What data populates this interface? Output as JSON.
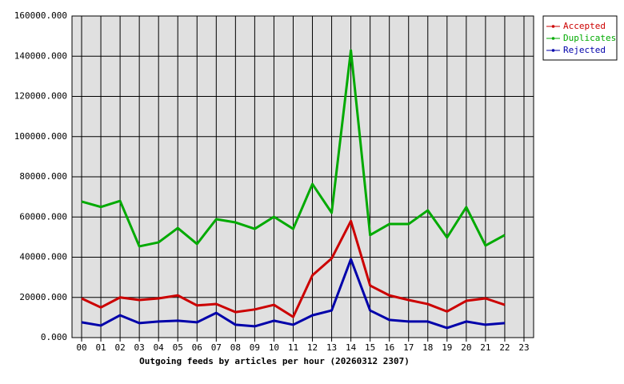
{
  "chart_data": {
    "type": "line",
    "xlabel": "Outgoing feeds by articles per hour (20260312 2307)",
    "categories": [
      "00",
      "01",
      "02",
      "03",
      "04",
      "05",
      "06",
      "07",
      "08",
      "09",
      "10",
      "11",
      "12",
      "13",
      "14",
      "15",
      "16",
      "17",
      "18",
      "19",
      "20",
      "21",
      "22",
      "23"
    ],
    "series": [
      {
        "name": "Accepted",
        "color": "#cc0000",
        "values": [
          19500,
          15000,
          20000,
          18700,
          19500,
          21000,
          16000,
          16700,
          12700,
          14000,
          16300,
          10300,
          31000,
          39400,
          58000,
          25900,
          21000,
          18700,
          16700,
          13000,
          18300,
          19500,
          16300,
          null
        ]
      },
      {
        "name": "Duplicates",
        "color": "#00aa00",
        "values": [
          67700,
          65000,
          68000,
          45400,
          47400,
          54500,
          46600,
          58900,
          57300,
          54100,
          60100,
          54100,
          76400,
          62100,
          142900,
          51000,
          56500,
          56500,
          63300,
          49800,
          64900,
          45800,
          51000,
          null
        ]
      },
      {
        "name": "Rejected",
        "color": "#0000aa",
        "values": [
          7600,
          6000,
          11100,
          7200,
          8000,
          8400,
          7600,
          12300,
          6400,
          5600,
          8400,
          6400,
          11100,
          13500,
          39000,
          13500,
          8800,
          8000,
          8000,
          4800,
          8000,
          6400,
          7200,
          null
        ]
      }
    ],
    "ylim": [
      0,
      160000
    ],
    "yticks": [
      {
        "value": 0,
        "label": "0.000"
      },
      {
        "value": 20000,
        "label": "20000.000"
      },
      {
        "value": 40000,
        "label": "40000.000"
      },
      {
        "value": 60000,
        "label": "60000.000"
      },
      {
        "value": 80000,
        "label": "80000.000"
      },
      {
        "value": 100000,
        "label": "100000.000"
      },
      {
        "value": 120000,
        "label": "120000.000"
      },
      {
        "value": 140000,
        "label": "140000.000"
      },
      {
        "value": 160000,
        "label": "160000.000"
      }
    ],
    "grid": true,
    "legend": "outside-top-right"
  }
}
